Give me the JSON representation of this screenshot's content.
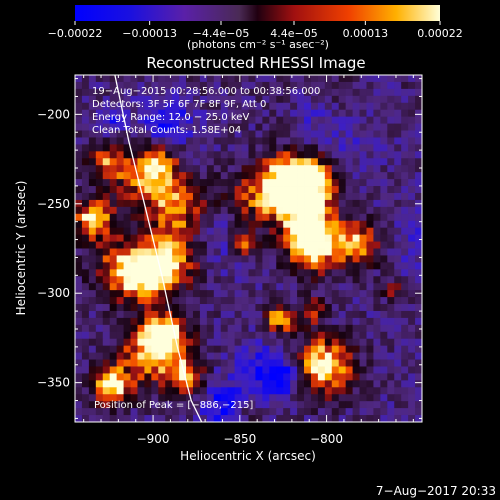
{
  "chart_data": {
    "type": "heatmap",
    "title": "Reconstructed RHESSI Image",
    "xlabel": "Heliocentric X (arcsec)",
    "ylabel": "Heliocentric Y (arcsec)",
    "xlim": [
      -945,
      -745
    ],
    "ylim": [
      -372,
      -178
    ],
    "xticks": [
      -900,
      -850,
      -800
    ],
    "xtick_labels": [
      "−900",
      "−850",
      "−800"
    ],
    "yticks": [
      -200,
      -250,
      -300,
      -350
    ],
    "ytick_labels": [
      "−200",
      "−250",
      "−300",
      "−350"
    ],
    "colorbar": {
      "range": [
        -0.00022,
        0.00022
      ],
      "tick_values": [
        -0.00022,
        -0.00013,
        -4.4e-05,
        4.4e-05,
        0.00013,
        0.00022
      ],
      "tick_labels": [
        "−0.00022",
        "−0.00013",
        "−4.4e−05",
        "4.4e−05",
        "0.00013",
        "0.00022"
      ],
      "units": "(photons cm⁻² s⁻¹ asec⁻²)"
    },
    "annotations": [
      "19−Aug−2015 00:28:56.000 to 00:38:56.000",
      "Detectors: 3F 5F 6F 7F 8F 9F, Att 0",
      "Energy Range: 12.0 − 25.0 keV",
      "Clean    Total Counts: 1.58E+04"
    ],
    "peak_label": "Position of Peak = [−886,−215]",
    "peak_position": [
      -886,
      -215
    ],
    "colors": {
      "background": "#000000",
      "foreground": "#ffffff",
      "limb": "#ffffff"
    }
  },
  "footer": {
    "date": "7−Aug−2017 20:33"
  }
}
